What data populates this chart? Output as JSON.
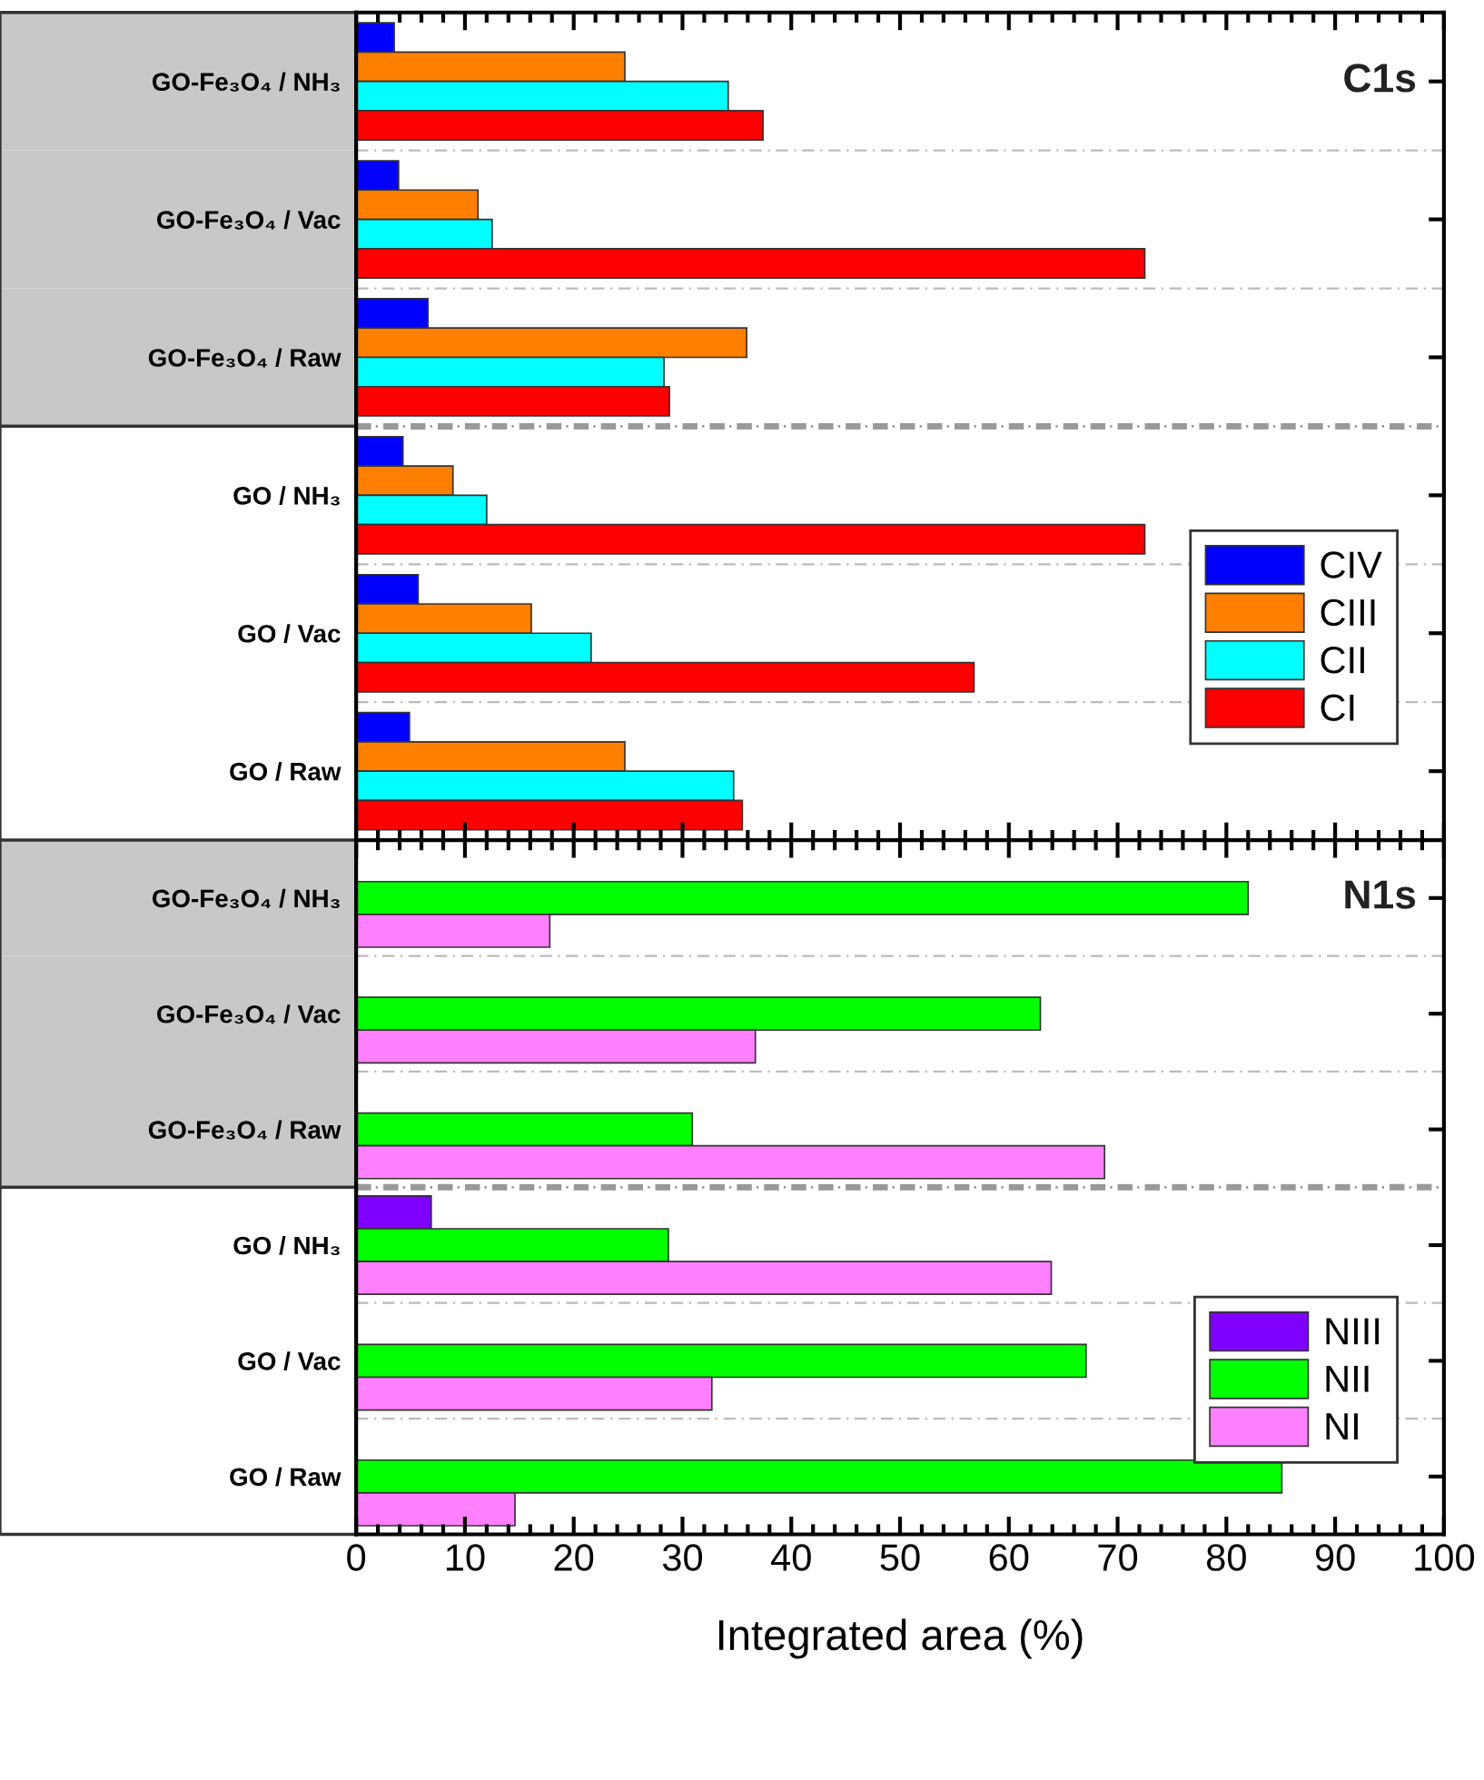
{
  "chart_data": [
    {
      "type": "bar",
      "orientation": "horizontal",
      "title": "C1s",
      "categories": [
        "GO-Fe₃O₄ / NH₃",
        "GO-Fe₃O₄ / Vac",
        "GO-Fe₃O₄ / Raw",
        "GO / NH₃",
        "GO / Vac",
        "GO / Raw"
      ],
      "series": [
        {
          "name": "CIV",
          "color": "#0000ff",
          "values": [
            3.5,
            3.9,
            6.6,
            4.3,
            5.7,
            4.9
          ]
        },
        {
          "name": "CIII",
          "color": "#ff7f00",
          "values": [
            24.7,
            11.2,
            35.9,
            8.9,
            16.1,
            24.7
          ]
        },
        {
          "name": "CII",
          "color": "#00ffff",
          "values": [
            34.2,
            12.5,
            28.3,
            12.0,
            21.6,
            34.7
          ]
        },
        {
          "name": "CI",
          "color": "#ff0000",
          "values": [
            37.4,
            72.5,
            28.8,
            72.5,
            56.8,
            35.5
          ]
        }
      ],
      "xlim": [
        0,
        100
      ],
      "xticks": [
        0,
        10,
        20,
        30,
        40,
        50,
        60,
        70,
        80,
        90,
        100
      ],
      "tick_labels": "y",
      "legend": "lower right"
    },
    {
      "type": "bar",
      "orientation": "horizontal",
      "title": "N1s",
      "xlabel": "Integrated area (%)",
      "categories": [
        "GO-Fe₃O₄ / NH₃",
        "GO-Fe₃O₄ / Vac",
        "GO-Fe₃O₄ / Raw",
        "GO / NH₃",
        "GO / Vac",
        "GO / Raw"
      ],
      "series": [
        {
          "name": "NIII",
          "color": "#8000ff",
          "values": [
            null,
            null,
            null,
            6.9,
            null,
            null
          ]
        },
        {
          "name": "NII",
          "color": "#00ff00",
          "values": [
            82.0,
            62.9,
            30.9,
            28.7,
            67.1,
            85.1
          ]
        },
        {
          "name": "NI",
          "color": "#ff80ff",
          "values": [
            17.8,
            36.7,
            68.8,
            63.9,
            32.7,
            14.6
          ]
        }
      ],
      "xlim": [
        0,
        100
      ],
      "xticks": [
        0,
        10,
        20,
        30,
        40,
        50,
        60,
        70,
        80,
        90,
        100
      ],
      "legend": "lower right"
    }
  ]
}
